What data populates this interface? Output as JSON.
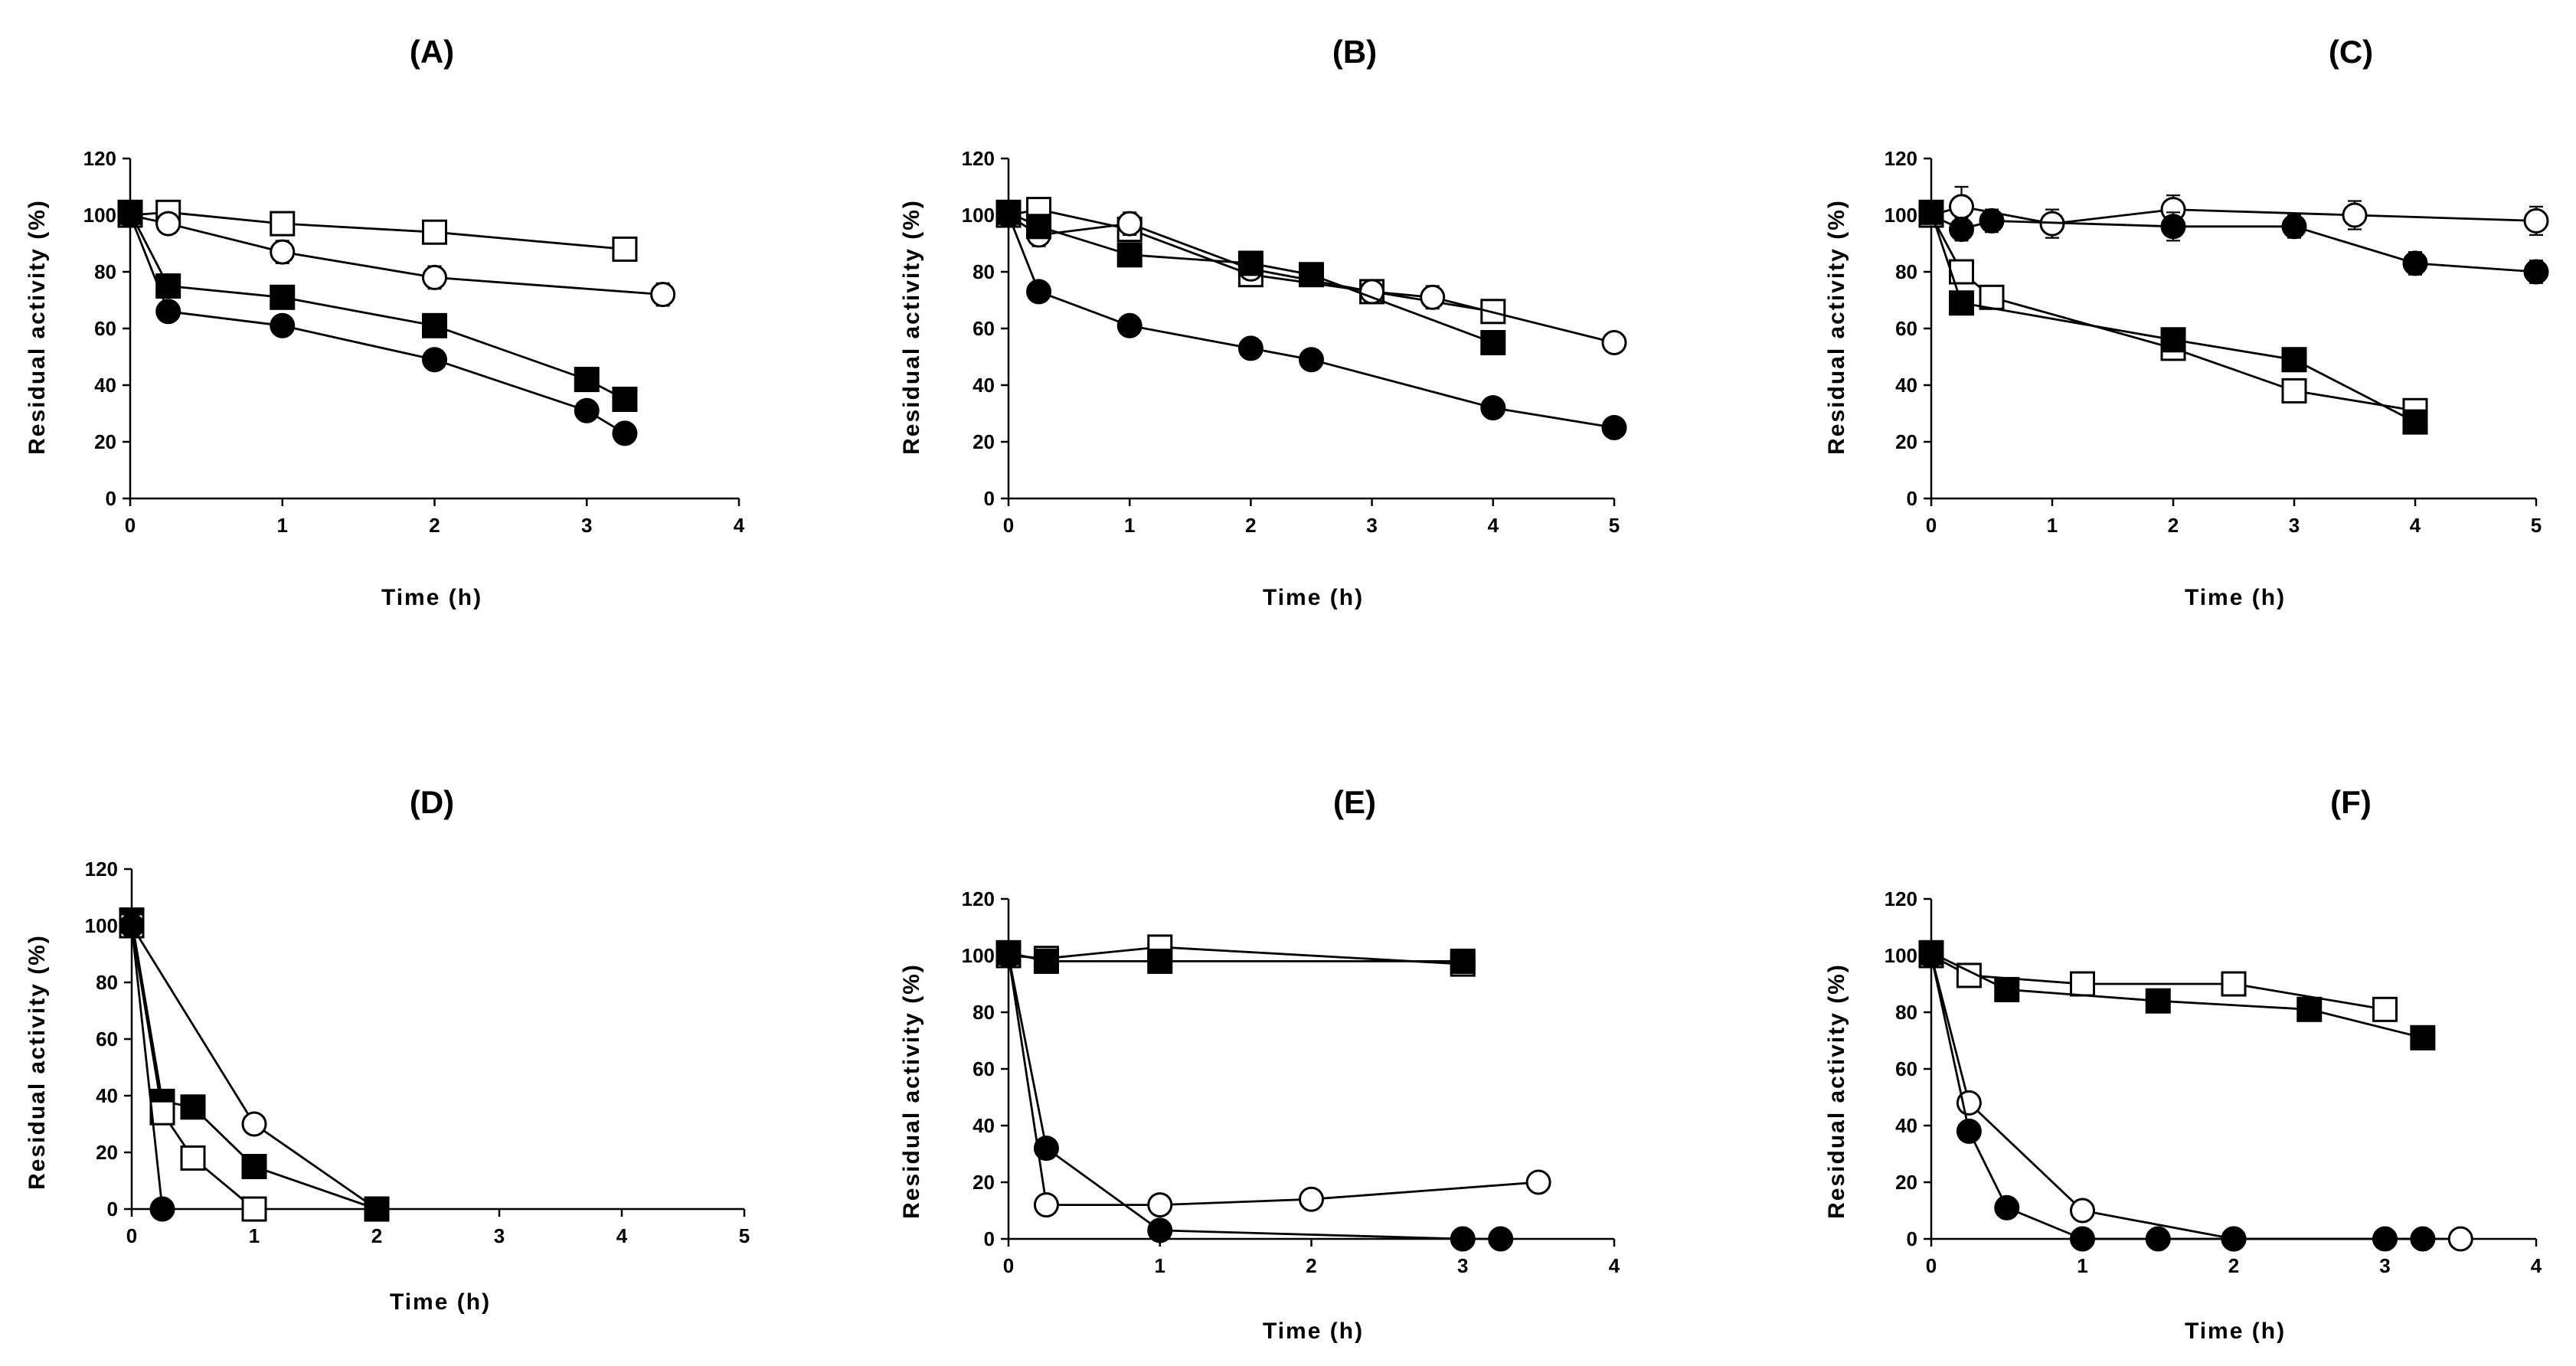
{
  "figure": {
    "background": "#ffffff",
    "ink": "#000000"
  },
  "chart_data": [
    {
      "panel": "A",
      "type": "scatter",
      "title": "(A)",
      "xlabel": "Time (h)",
      "ylabel": "Residual activity (%)",
      "xlim": [
        0,
        4
      ],
      "ylim": [
        0,
        120
      ],
      "xticks": [
        "0",
        "1",
        "2",
        "3",
        "4"
      ],
      "yticks": [
        "0",
        "20",
        "40",
        "60",
        "80",
        "100",
        "120"
      ],
      "grid": false,
      "series": [
        {
          "marker": "open-square",
          "x": [
            0,
            0.25,
            1,
            2,
            3.25
          ],
          "y": [
            100,
            101,
            97,
            94,
            88
          ],
          "err": [
            3,
            3,
            3,
            4,
            3
          ]
        },
        {
          "marker": "open-circle",
          "x": [
            0,
            0.25,
            1,
            2,
            3.5
          ],
          "y": [
            100,
            97,
            87,
            78,
            72
          ],
          "err": [
            3,
            3,
            4,
            4,
            4
          ]
        },
        {
          "marker": "filled-square",
          "x": [
            0,
            0.25,
            1,
            2,
            3,
            3.25
          ],
          "y": [
            101,
            75,
            71,
            61,
            42,
            35
          ],
          "err": [
            2,
            2,
            2,
            2,
            2,
            2
          ]
        },
        {
          "marker": "filled-circle",
          "x": [
            0,
            0.25,
            1,
            2,
            3,
            3.25
          ],
          "y": [
            100,
            66,
            61,
            49,
            31,
            23
          ],
          "err": [
            2,
            3,
            3,
            2,
            2,
            2
          ]
        }
      ]
    },
    {
      "panel": "B",
      "type": "scatter",
      "title": "(B)",
      "xlabel": "Time (h)",
      "ylabel": "Residual activity (%)",
      "xlim": [
        0,
        5
      ],
      "ylim": [
        0,
        120
      ],
      "xticks": [
        "0",
        "1",
        "2",
        "3",
        "4",
        "5"
      ],
      "yticks": [
        "0",
        "20",
        "40",
        "60",
        "80",
        "100",
        "120"
      ],
      "grid": false,
      "series": [
        {
          "marker": "open-square",
          "x": [
            0,
            0.25,
            1,
            2,
            3,
            4
          ],
          "y": [
            100,
            102,
            95,
            79,
            73,
            66
          ],
          "err": [
            3,
            3,
            3,
            3,
            3,
            3
          ]
        },
        {
          "marker": "open-circle",
          "x": [
            0,
            0.25,
            1,
            2,
            3,
            3.5,
            5
          ],
          "y": [
            100,
            93,
            97,
            81,
            73,
            71,
            55
          ],
          "err": [
            3,
            4,
            4,
            3,
            3,
            4,
            3
          ]
        },
        {
          "marker": "filled-square",
          "x": [
            0,
            0.25,
            1,
            2,
            2.5,
            4
          ],
          "y": [
            101,
            96,
            86,
            83,
            79,
            55
          ],
          "err": [
            2,
            2,
            2,
            2,
            2,
            2
          ]
        },
        {
          "marker": "filled-circle",
          "x": [
            0,
            0.25,
            1,
            2,
            2.5,
            4,
            5
          ],
          "y": [
            100,
            73,
            61,
            53,
            49,
            32,
            25
          ],
          "err": [
            3,
            3,
            3,
            3,
            2,
            2,
            2
          ]
        }
      ]
    },
    {
      "panel": "C",
      "type": "scatter",
      "title": "(C)",
      "xlabel": "Time (h)",
      "ylabel": "Residual activity (%)",
      "xlim": [
        0,
        5
      ],
      "ylim": [
        0,
        120
      ],
      "xticks": [
        "0",
        "1",
        "2",
        "3",
        "4",
        "5"
      ],
      "yticks": [
        "0",
        "20",
        "40",
        "60",
        "80",
        "100",
        "120"
      ],
      "grid": false,
      "series": [
        {
          "marker": "open-circle",
          "x": [
            0,
            0.25,
            1,
            2,
            3.5,
            5
          ],
          "y": [
            100,
            103,
            97,
            102,
            100,
            98
          ],
          "err": [
            3,
            7,
            5,
            5,
            5,
            5
          ]
        },
        {
          "marker": "filled-circle",
          "x": [
            0,
            0.25,
            0.5,
            2,
            3,
            4,
            5
          ],
          "y": [
            100,
            95,
            98,
            96,
            96,
            83,
            80
          ],
          "err": [
            3,
            4,
            4,
            5,
            4,
            4,
            4
          ]
        },
        {
          "marker": "open-square",
          "x": [
            0,
            0.25,
            0.5,
            2,
            3,
            4
          ],
          "y": [
            100,
            80,
            71,
            53,
            38,
            31
          ],
          "err": [
            3,
            3,
            3,
            3,
            3,
            3
          ]
        },
        {
          "marker": "filled-square",
          "x": [
            0,
            0.25,
            2,
            3,
            4
          ],
          "y": [
            101,
            69,
            56,
            49,
            27
          ],
          "err": [
            2,
            2,
            2,
            2,
            2
          ]
        }
      ]
    },
    {
      "panel": "D",
      "type": "scatter",
      "title": "(D)",
      "xlabel": "Time (h)",
      "ylabel": "Residual activity (%)",
      "xlim": [
        0,
        5
      ],
      "ylim": [
        0,
        120
      ],
      "xticks": [
        "0",
        "1",
        "2",
        "3",
        "4",
        "5"
      ],
      "yticks": [
        "0",
        "20",
        "40",
        "60",
        "80",
        "100",
        "120"
      ],
      "grid": false,
      "series": [
        {
          "marker": "open-circle",
          "x": [
            0,
            1,
            2
          ],
          "y": [
            100,
            30,
            0
          ],
          "err": [
            3,
            3,
            0
          ]
        },
        {
          "marker": "filled-square",
          "x": [
            0,
            0.25,
            0.5,
            1,
            2
          ],
          "y": [
            102,
            38,
            36,
            15,
            0
          ],
          "err": [
            3,
            4,
            2,
            2,
            0
          ]
        },
        {
          "marker": "open-square",
          "x": [
            0,
            0.25,
            0.5,
            1
          ],
          "y": [
            100,
            34,
            18,
            0
          ],
          "err": [
            3,
            3,
            3,
            0
          ]
        },
        {
          "marker": "filled-circle",
          "x": [
            0,
            0.25
          ],
          "y": [
            100,
            0
          ],
          "err": [
            3,
            0
          ]
        }
      ]
    },
    {
      "panel": "E",
      "type": "scatter",
      "title": "(E)",
      "xlabel": "Time (h)",
      "ylabel": "Residual activity (%)",
      "xlim": [
        0,
        4
      ],
      "ylim": [
        0,
        120
      ],
      "xticks": [
        "0",
        "1",
        "2",
        "3",
        "4"
      ],
      "yticks": [
        "0",
        "20",
        "40",
        "60",
        "80",
        "100",
        "120"
      ],
      "grid": false,
      "series": [
        {
          "marker": "open-square",
          "x": [
            0,
            0.25,
            1,
            3
          ],
          "y": [
            100,
            99,
            103,
            97
          ],
          "err": [
            4,
            4,
            4,
            3
          ]
        },
        {
          "marker": "filled-square",
          "x": [
            0,
            0.25,
            1,
            3
          ],
          "y": [
            101,
            98,
            98,
            98
          ],
          "err": [
            3,
            3,
            4,
            2
          ]
        },
        {
          "marker": "open-circle",
          "x": [
            0,
            0.25,
            1,
            2,
            3.5
          ],
          "y": [
            100,
            12,
            12,
            14,
            20
          ],
          "err": [
            3,
            2,
            2,
            2,
            2
          ]
        },
        {
          "marker": "filled-circle",
          "x": [
            0,
            0.25,
            1,
            3,
            3.25
          ],
          "y": [
            100,
            32,
            3,
            0,
            0
          ],
          "err": [
            3,
            2,
            2,
            0,
            0
          ]
        }
      ]
    },
    {
      "panel": "F",
      "type": "scatter",
      "title": "(F)",
      "xlabel": "Time (h)",
      "ylabel": "Residual activity (%)",
      "xlim": [
        0,
        4
      ],
      "ylim": [
        0,
        120
      ],
      "xticks": [
        "0",
        "1",
        "2",
        "3",
        "4"
      ],
      "yticks": [
        "0",
        "20",
        "40",
        "60",
        "80",
        "100",
        "120"
      ],
      "grid": false,
      "series": [
        {
          "marker": "open-square",
          "x": [
            0,
            0.25,
            1,
            2,
            3
          ],
          "y": [
            100,
            93,
            90,
            90,
            81
          ],
          "err": [
            3,
            4,
            3,
            4,
            3
          ]
        },
        {
          "marker": "filled-square",
          "x": [
            0,
            0.5,
            1.5,
            2.5,
            3.25
          ],
          "y": [
            101,
            88,
            84,
            81,
            71
          ],
          "err": [
            2,
            2,
            2,
            2,
            2
          ]
        },
        {
          "marker": "open-circle",
          "x": [
            0,
            0.25,
            1,
            2,
            3.5
          ],
          "y": [
            100,
            48,
            10,
            0,
            0
          ],
          "err": [
            3,
            2,
            2,
            0,
            0
          ]
        },
        {
          "marker": "filled-circle",
          "x": [
            0,
            0.25,
            0.5,
            1,
            1.5,
            2,
            3,
            3.25
          ],
          "y": [
            100,
            38,
            11,
            0,
            0,
            0,
            0,
            0
          ],
          "err": [
            3,
            2,
            2,
            0,
            0,
            0,
            0,
            0
          ]
        }
      ]
    }
  ]
}
